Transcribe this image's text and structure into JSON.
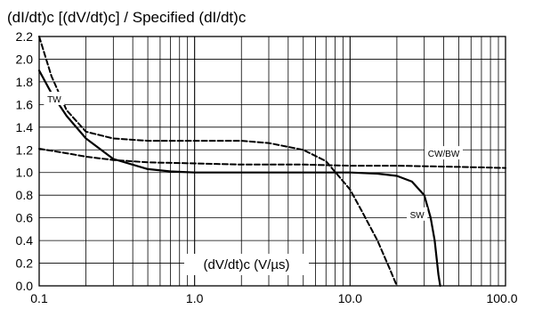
{
  "chart_data": {
    "type": "line",
    "title": "(dI/dt)c [(dV/dt)c] / Specified (dI/dt)c",
    "xlabel": "(dV/dt)c (V/µs)",
    "ylabel": "",
    "x_scale": "log",
    "xlim": [
      0.1,
      100
    ],
    "ylim": [
      0,
      2.2
    ],
    "x_ticks": [
      0.1,
      1,
      10,
      100
    ],
    "x_tick_labels": [
      "0.1",
      "1.0",
      "10.0",
      "100.0"
    ],
    "y_ticks": [
      0,
      0.2,
      0.4,
      0.6,
      0.8,
      1.0,
      1.2,
      1.4,
      1.6,
      1.8,
      2.0,
      2.2
    ],
    "y_tick_labels": [
      "0.0",
      "0.2",
      "0.4",
      "0.6",
      "0.8",
      "1.0",
      "1.2",
      "1.4",
      "1.6",
      "1.8",
      "2.0",
      "2.2"
    ],
    "grid": true,
    "series": [
      {
        "name": "TW",
        "style": "dashed",
        "x": [
          0.1,
          0.12,
          0.15,
          0.2,
          0.3,
          0.5,
          1,
          2,
          3,
          5,
          7,
          10,
          12,
          15,
          18,
          20
        ],
        "y": [
          2.2,
          1.85,
          1.55,
          1.36,
          1.3,
          1.28,
          1.28,
          1.28,
          1.26,
          1.2,
          1.1,
          0.85,
          0.65,
          0.4,
          0.15,
          0
        ]
      },
      {
        "name": "CW/BW",
        "style": "dashed",
        "x": [
          0.1,
          0.15,
          0.2,
          0.3,
          0.5,
          1,
          2,
          5,
          10,
          20,
          50,
          100
        ],
        "y": [
          1.21,
          1.17,
          1.14,
          1.11,
          1.09,
          1.08,
          1.07,
          1.07,
          1.06,
          1.06,
          1.05,
          1.04
        ]
      },
      {
        "name": "SW",
        "style": "solid",
        "x": [
          0.1,
          0.12,
          0.15,
          0.2,
          0.3,
          0.5,
          0.7,
          1,
          2,
          5,
          10,
          15,
          20,
          25,
          30,
          33,
          35,
          37,
          38
        ],
        "y": [
          1.9,
          1.7,
          1.5,
          1.3,
          1.12,
          1.03,
          1.01,
          1.0,
          1.0,
          1.0,
          1.0,
          0.99,
          0.97,
          0.92,
          0.8,
          0.6,
          0.4,
          0.1,
          0
        ]
      }
    ]
  }
}
